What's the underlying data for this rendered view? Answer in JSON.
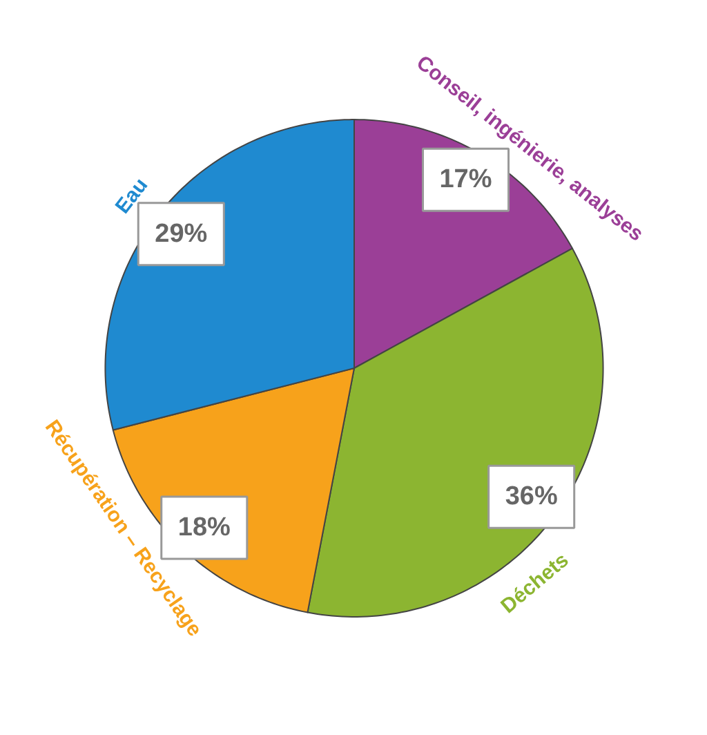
{
  "chart_data": {
    "type": "pie",
    "categories": [
      "Conseil, ingénierie, analyses",
      "Déchets",
      "Récupération – Recyclage",
      "Eau"
    ],
    "values": [
      17,
      36,
      18,
      29
    ],
    "colors": [
      "#9b3f97",
      "#8cb531",
      "#f7a21b",
      "#1f8ad0"
    ],
    "value_labels": [
      "17%",
      "36%",
      "18%",
      "29%"
    ]
  }
}
